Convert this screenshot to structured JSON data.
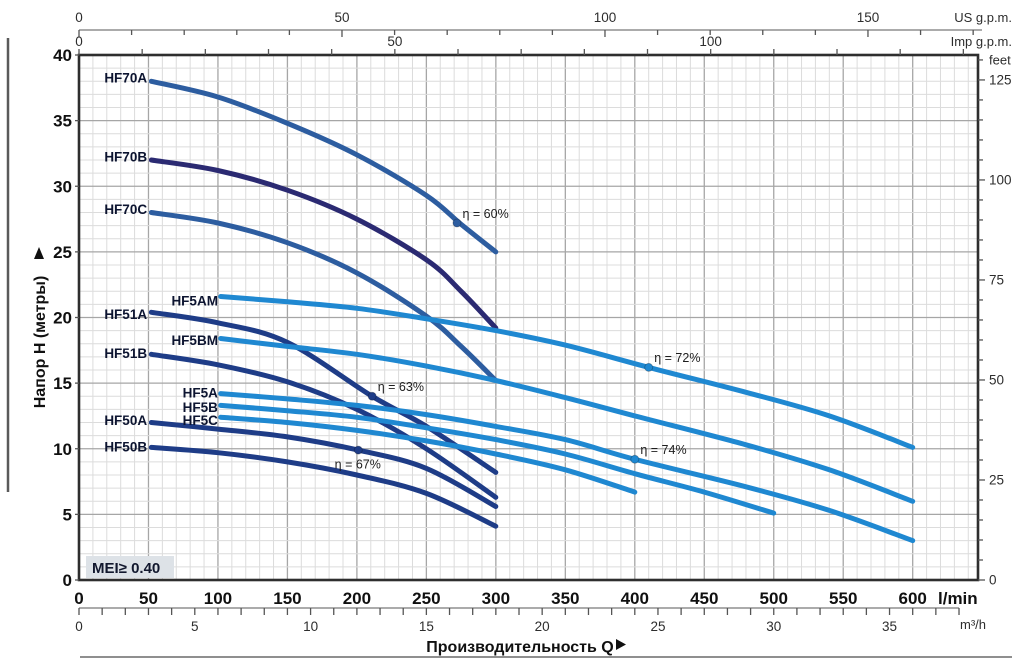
{
  "page": {
    "background": "#ffffff"
  },
  "chart_data": {
    "type": "line",
    "title": "",
    "xlabel": "Производительность Q",
    "ylabel": "Напор H (метры)",
    "badge": "MEI≥ 0.40",
    "x_range_lmin": [
      0,
      647
    ],
    "y_range_m": [
      0,
      40
    ],
    "grid": {
      "minor_x_lmin": 10,
      "major_x_lmin": 50,
      "minor_y_m": 1,
      "major_y_m": 5
    },
    "colors": {
      "steel": "#2d5da0",
      "indigo": "#2b2a72",
      "navy": "#1e3c87",
      "azure": "#1f88d1",
      "grid_minor": "#dcdcdc",
      "grid_major": "#a6a6a6",
      "border": "#2e2e2e"
    },
    "axes": {
      "left_m": {
        "unit": "м",
        "label_step": 5,
        "labels": [
          0,
          5,
          10,
          15,
          20,
          25,
          30,
          35,
          40
        ]
      },
      "bottom_lmin": {
        "unit": "l/min",
        "label_step": 50,
        "labels": [
          0,
          50,
          100,
          150,
          200,
          250,
          300,
          350,
          400,
          450,
          500,
          550,
          600
        ]
      },
      "bottom_m3h": {
        "unit": "m³/h",
        "lmin_per_unit": 16.6667,
        "tick_step": 1,
        "tick_max": 38,
        "label_step": 5,
        "label_max": 35
      },
      "top_usgpm": {
        "unit": "US g.p.m.",
        "lmin_per_unit": 3.7854,
        "tick_step": 10,
        "tick_max": 170,
        "label_step": 50,
        "label_max": 150
      },
      "top_impgpm": {
        "unit": "Imp g.p.m.",
        "lmin_per_unit": 4.5461,
        "tick_step": 10,
        "tick_max": 140,
        "label_step": 50,
        "label_max": 100
      },
      "right_feet": {
        "unit": "feet",
        "m_per_unit": 0.3048,
        "tick_step": 5,
        "tick_max": 130,
        "label_step": 25,
        "label_max": 125
      }
    },
    "series": [
      {
        "name": "HF70A",
        "color": "steel",
        "label_q": 49,
        "label_h": 37.9,
        "points": [
          [
            52,
            38.0
          ],
          [
            100,
            36.8
          ],
          [
            150,
            34.8
          ],
          [
            200,
            32.4
          ],
          [
            250,
            29.3
          ],
          [
            275,
            27.1
          ],
          [
            300,
            25.0
          ]
        ]
      },
      {
        "name": "HF70B",
        "color": "indigo",
        "label_q": 49,
        "label_h": 31.9,
        "points": [
          [
            52,
            32.0
          ],
          [
            100,
            31.2
          ],
          [
            150,
            29.7
          ],
          [
            200,
            27.5
          ],
          [
            250,
            24.4
          ],
          [
            275,
            22.0
          ],
          [
            300,
            19.2
          ]
        ]
      },
      {
        "name": "HF70C",
        "color": "steel",
        "label_q": 49,
        "label_h": 27.9,
        "points": [
          [
            52,
            28.0
          ],
          [
            100,
            27.2
          ],
          [
            150,
            25.7
          ],
          [
            200,
            23.4
          ],
          [
            250,
            20.1
          ],
          [
            275,
            17.8
          ],
          [
            300,
            15.2
          ]
        ]
      },
      {
        "name": "HF51A",
        "color": "navy",
        "label_q": 49,
        "label_h": 19.9,
        "points": [
          [
            52,
            20.4
          ],
          [
            100,
            19.6
          ],
          [
            150,
            18.1
          ],
          [
            211,
            14.0
          ],
          [
            250,
            11.7
          ],
          [
            300,
            8.2
          ]
        ]
      },
      {
        "name": "HF51B",
        "color": "navy",
        "label_q": 49,
        "label_h": 16.9,
        "points": [
          [
            52,
            17.2
          ],
          [
            100,
            16.4
          ],
          [
            150,
            15.1
          ],
          [
            200,
            13.0
          ],
          [
            250,
            10.0
          ],
          [
            300,
            6.3
          ]
        ]
      },
      {
        "name": "HF50A",
        "color": "navy",
        "label_q": 49,
        "label_h": 11.8,
        "points": [
          [
            52,
            12.0
          ],
          [
            100,
            11.5
          ],
          [
            150,
            10.9
          ],
          [
            201,
            9.9
          ],
          [
            250,
            8.5
          ],
          [
            300,
            5.6
          ]
        ]
      },
      {
        "name": "HF50B",
        "color": "navy",
        "label_q": 49,
        "label_h": 9.8,
        "points": [
          [
            52,
            10.1
          ],
          [
            100,
            9.7
          ],
          [
            150,
            9.0
          ],
          [
            200,
            8.0
          ],
          [
            250,
            6.6
          ],
          [
            300,
            4.1
          ]
        ]
      },
      {
        "name": "HF5AM",
        "color": "azure",
        "label_q": 100,
        "label_h": 20.9,
        "points": [
          [
            102,
            21.6
          ],
          [
            150,
            21.2
          ],
          [
            200,
            20.7
          ],
          [
            250,
            19.9
          ],
          [
            300,
            19.0
          ],
          [
            350,
            17.9
          ],
          [
            410,
            16.2
          ],
          [
            480,
            14.3
          ],
          [
            540,
            12.5
          ],
          [
            600,
            10.1
          ]
        ]
      },
      {
        "name": "HF5BM",
        "color": "azure",
        "label_q": 100,
        "label_h": 17.9,
        "points": [
          [
            102,
            18.4
          ],
          [
            150,
            17.8
          ],
          [
            200,
            17.2
          ],
          [
            250,
            16.3
          ],
          [
            300,
            15.2
          ],
          [
            350,
            13.9
          ],
          [
            400,
            12.5
          ],
          [
            480,
            10.3
          ],
          [
            540,
            8.4
          ],
          [
            600,
            6.0
          ]
        ]
      },
      {
        "name": "HF5A",
        "color": "azure",
        "label_q": 100,
        "label_h": 13.9,
        "points": [
          [
            102,
            14.2
          ],
          [
            150,
            13.8
          ],
          [
            200,
            13.3
          ],
          [
            250,
            12.6
          ],
          [
            300,
            11.7
          ],
          [
            350,
            10.7
          ],
          [
            400,
            9.2
          ],
          [
            480,
            7.1
          ],
          [
            540,
            5.3
          ],
          [
            600,
            3.0
          ]
        ]
      },
      {
        "name": "HF5B",
        "color": "azure",
        "label_q": 100,
        "label_h": 12.8,
        "points": [
          [
            102,
            13.3
          ],
          [
            150,
            12.9
          ],
          [
            200,
            12.4
          ],
          [
            250,
            11.6
          ],
          [
            300,
            10.7
          ],
          [
            350,
            9.6
          ],
          [
            400,
            8.1
          ],
          [
            450,
            6.7
          ],
          [
            500,
            5.1
          ]
        ]
      },
      {
        "name": "HF5C",
        "color": "azure",
        "label_q": 100,
        "label_h": 11.8,
        "points": [
          [
            102,
            12.4
          ],
          [
            150,
            12.0
          ],
          [
            200,
            11.4
          ],
          [
            250,
            10.6
          ],
          [
            300,
            9.6
          ],
          [
            350,
            8.4
          ],
          [
            400,
            6.7
          ]
        ]
      }
    ],
    "efficiency_markers": [
      {
        "text": "η = 60%",
        "series": "HF70A",
        "dot": [
          272,
          27.2
        ],
        "label_at": [
          276,
          27.6
        ]
      },
      {
        "text": "η = 72%",
        "series": "HF5AM",
        "dot": [
          410,
          16.2
        ],
        "label_at": [
          414,
          16.6
        ]
      },
      {
        "text": "η = 63%",
        "series": "HF51A",
        "dot": [
          211,
          14.0
        ],
        "label_at": [
          215,
          14.4
        ]
      },
      {
        "text": "η = 74%",
        "series": "HF5A",
        "dot": [
          400,
          9.2
        ],
        "label_at": [
          404,
          9.6
        ]
      },
      {
        "text": "η = 67%",
        "series": "HF50A",
        "dot": [
          201,
          9.9
        ],
        "label_at": [
          184,
          8.5
        ]
      }
    ]
  }
}
